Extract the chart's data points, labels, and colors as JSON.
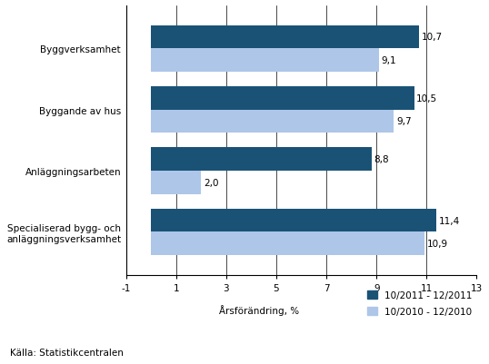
{
  "categories": [
    "Specialiserad bygg- och\nanläggningsverksamhet",
    "Anläggningsarbeten",
    "Byggande av hus",
    "Byggverksamhet"
  ],
  "series_2011": [
    11.4,
    8.8,
    10.5,
    10.7
  ],
  "series_2010": [
    10.9,
    2.0,
    9.7,
    9.1
  ],
  "labels_2011": [
    "11,4",
    "8,8",
    "10,5",
    "10,7"
  ],
  "labels_2010": [
    "10,9",
    "2,0",
    "9,7",
    "9,1"
  ],
  "color_2011": "#1a5276",
  "color_2010": "#aec6e8",
  "xlim": [
    -1,
    13
  ],
  "xticks": [
    -1,
    1,
    3,
    5,
    7,
    9,
    11,
    13
  ],
  "xlabel": "Årsförändring, %",
  "source": "Källa: Statistikcentralen",
  "legend_2011": "10/2011 - 12/2011",
  "legend_2010": "10/2010 - 12/2010",
  "bar_height": 0.38,
  "background_color": "#ffffff",
  "grid_color": "#000000"
}
